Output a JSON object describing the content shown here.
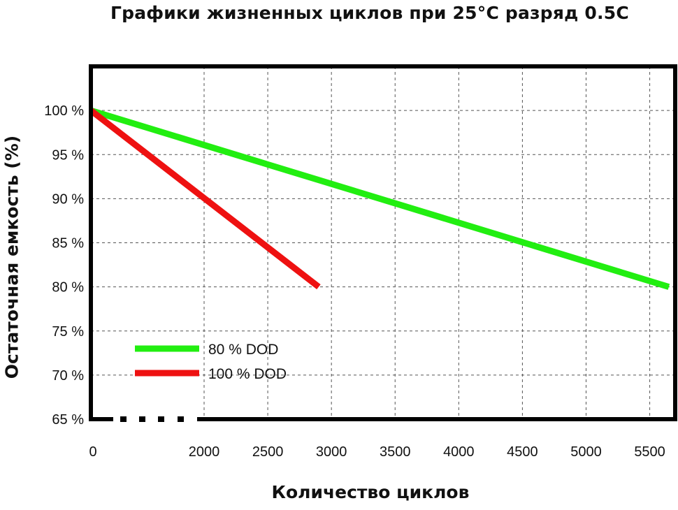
{
  "chart_data": {
    "type": "line",
    "title": "Графики жизненных циклов при 25°С  разряд 0.5С",
    "xlabel": "Количество циклов",
    "ylabel": "Остаточная емкость (%)",
    "xlim": [
      1500,
      5700
    ],
    "ylim": [
      65,
      105
    ],
    "x_axis_break": true,
    "x_ticks": [
      {
        "value": 0,
        "label": "0"
      },
      {
        "value": 2000,
        "label": "2000"
      },
      {
        "value": 2500,
        "label": "2500"
      },
      {
        "value": 3000,
        "label": "3000"
      },
      {
        "value": 3500,
        "label": "3500"
      },
      {
        "value": 4000,
        "label": "4000"
      },
      {
        "value": 4500,
        "label": "4500"
      },
      {
        "value": 5000,
        "label": "5000"
      },
      {
        "value": 5500,
        "label": "5500"
      }
    ],
    "y_ticks": [
      {
        "value": 100,
        "label": "100 %"
      },
      {
        "value": 95,
        "label": "95 %"
      },
      {
        "value": 90,
        "label": "90 %"
      },
      {
        "value": 85,
        "label": "85 %"
      },
      {
        "value": 80,
        "label": "80 %"
      },
      {
        "value": 75,
        "label": "75 %"
      },
      {
        "value": 70,
        "label": "70 %"
      },
      {
        "value": 65,
        "label": "65 %"
      }
    ],
    "grid": true,
    "legend_position": "bottom-left",
    "series": [
      {
        "name": "80 % DOD",
        "color": "#22ee11",
        "points": [
          [
            0,
            100
          ],
          [
            5650,
            80
          ]
        ]
      },
      {
        "name": "100 % DOD",
        "color": "#ee1111",
        "points": [
          [
            0,
            100
          ],
          [
            2900,
            80
          ]
        ]
      }
    ]
  }
}
